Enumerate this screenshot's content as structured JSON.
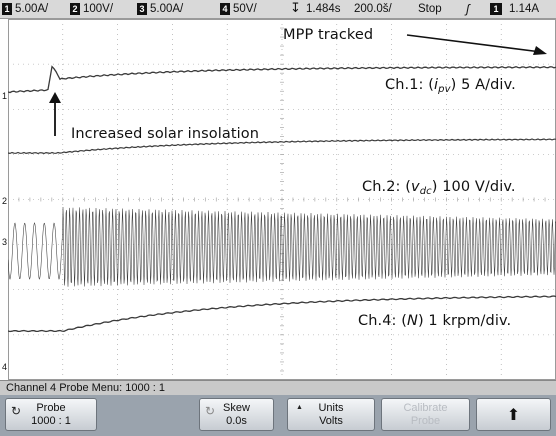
{
  "topbar": {
    "ch1_num": "1",
    "ch1_scale": "5.00A/",
    "ch2_num": "2",
    "ch2_scale": "100V/",
    "ch3_num": "3",
    "ch3_scale": "5.00A/",
    "ch4_num": "4",
    "ch4_scale": "50V/",
    "trigger_icon": "trigger-position-icon",
    "time_pos": "1.484s",
    "time_div": "200.0š/",
    "run_state": "Stop",
    "trigger_slope_icon": "rising-edge-icon",
    "trig_ch_num": "1",
    "trig_level": "1.14A"
  },
  "annotations": {
    "mpp": "MPP tracked",
    "ch1_pre": "Ch.1: (",
    "ch1_var": "i",
    "ch1_sub": "pv",
    "ch1_post": ") 5 A/div.",
    "insolation": "Increased solar insolation",
    "ch2_pre": "Ch.2: (",
    "ch2_var": "v",
    "ch2_sub": "dc",
    "ch2_post": ") 100 V/div.",
    "ch4_pre": "Ch.4: (",
    "ch4_var": "N",
    "ch4_post": ") 1 krpm/div."
  },
  "channel_markers": {
    "m1": "1",
    "m2": "2",
    "m3": "3",
    "m4": "4"
  },
  "menu": {
    "title": "Channel 4  Probe Menu: 1000 : 1"
  },
  "softkeys": {
    "probe_label": "Probe",
    "probe_value": "1000 : 1",
    "skew_label": "Skew",
    "skew_value": "0.0s",
    "units_label": "Units",
    "units_value": "Volts",
    "calibrate_label": "Calibrate",
    "calibrate_value": "Probe",
    "up_icon": "up-arrow-icon"
  },
  "colors": {
    "trace": "#3a3a3a",
    "grid": "#9a9a9a",
    "softkey_bg": "#9aa3ad",
    "topbar_bg": "#d9d9d9"
  }
}
